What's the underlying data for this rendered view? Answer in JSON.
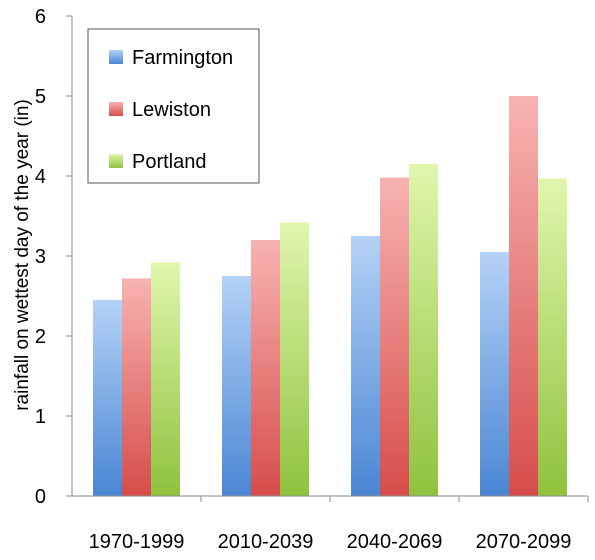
{
  "chart_data": {
    "type": "bar",
    "title": "",
    "xlabel": "",
    "ylabel": "rainfall on wettest day of the year (in)",
    "ylim": [
      0,
      6
    ],
    "yticks": [
      "0",
      "1",
      "2",
      "3",
      "4",
      "5",
      "6"
    ],
    "grid": false,
    "legend_position": "top-left",
    "categories": [
      "1970-1999",
      "2010-2039",
      "2040-2069",
      "2070-2099"
    ],
    "series": [
      {
        "name": "Farmington",
        "values": [
          2.45,
          2.75,
          3.25,
          3.05
        ],
        "color_top": "#b4d2f6",
        "color_bottom": "#4a86d4"
      },
      {
        "name": "Lewiston",
        "values": [
          2.72,
          3.2,
          3.98,
          5.0
        ],
        "color_top": "#f7b3b1",
        "color_bottom": "#d64d4b"
      },
      {
        "name": "Portland",
        "values": [
          2.92,
          3.42,
          4.15,
          3.97
        ],
        "color_top": "#e0f6ad",
        "color_bottom": "#8fc23e"
      }
    ]
  }
}
